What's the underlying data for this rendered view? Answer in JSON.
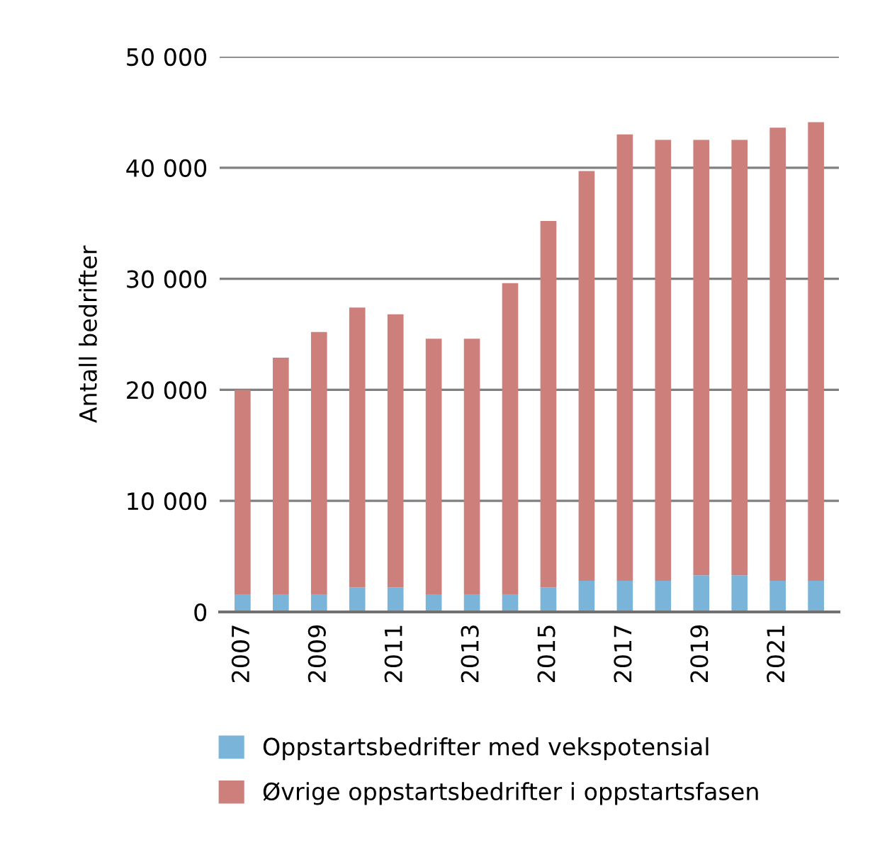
{
  "chart_data": {
    "type": "bar",
    "stacked": true,
    "ylabel": "Antall bedrifter",
    "categories": [
      "2007",
      null,
      "2009",
      null,
      "2011",
      null,
      "2013",
      null,
      "2015",
      null,
      "2017",
      null,
      "2019",
      null,
      "2021",
      null
    ],
    "series": [
      {
        "name": "Oppstartsbedrifter med vekspotensial",
        "color": "#7ab4d8",
        "values": [
          1600,
          1600,
          1600,
          2200,
          2200,
          1600,
          1600,
          1600,
          2200,
          2800,
          2800,
          2800,
          3300,
          3300,
          2800,
          2800
        ]
      },
      {
        "name": "Øvrige oppstartsbedrifter i oppstartsfasen",
        "color": "#cc7f7b",
        "values": [
          18400,
          21300,
          23600,
          25200,
          24600,
          23000,
          23000,
          28000,
          33000,
          36900,
          40200,
          39700,
          39200,
          39200,
          40800,
          41300
        ]
      }
    ],
    "ylim": [
      0,
      50000
    ],
    "yticks": [
      0,
      {
        "value": 10000,
        "label": "10 000"
      },
      {
        "value": 20000,
        "label": "20 000"
      },
      {
        "value": 30000,
        "label": "30 000"
      },
      {
        "value": 40000,
        "label": "40 000"
      },
      {
        "value": 50000,
        "label": "50 000"
      }
    ],
    "grid": "y",
    "legend": "bottom"
  }
}
